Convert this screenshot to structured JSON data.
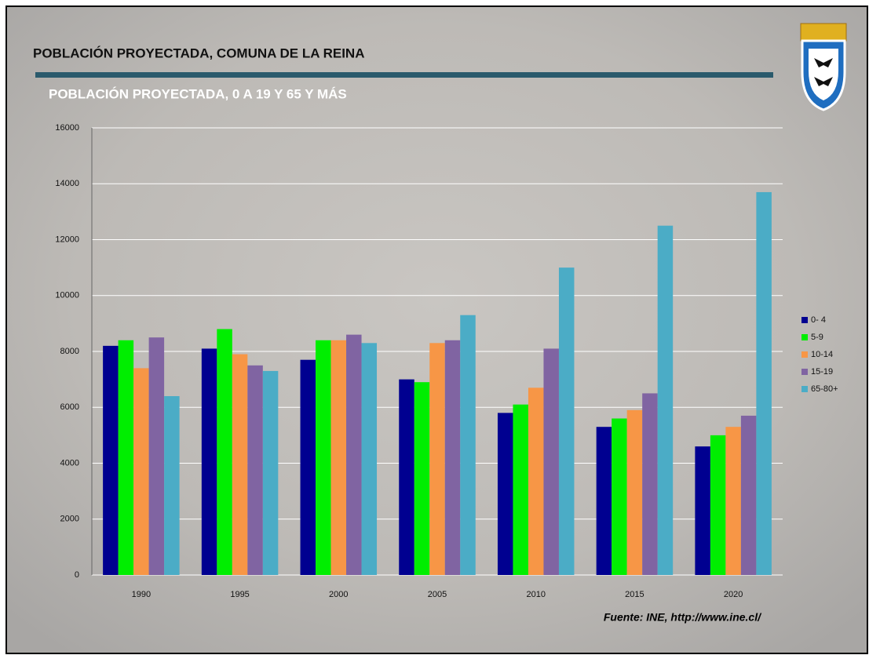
{
  "chart_data": {
    "type": "bar",
    "title": "POBLACIÓN PROYECTADA, COMUNA DE LA REINA",
    "subtitle": "POBLACIÓN PROYECTADA, 0 A 19 Y 65 Y MÁS",
    "source": "Fuente: INE, http://www.ine.cl/",
    "categories": [
      "1990",
      "1995",
      "2000",
      "2005",
      "2010",
      "2015",
      "2020"
    ],
    "series": [
      {
        "name": "0- 4",
        "color": "#000090",
        "values": [
          8200,
          8100,
          7700,
          7000,
          5800,
          5300,
          4600
        ]
      },
      {
        "name": "5-9",
        "color": "#00ee00",
        "values": [
          8400,
          8800,
          8400,
          6900,
          6100,
          5600,
          5000
        ]
      },
      {
        "name": "10-14",
        "color": "#f79646",
        "values": [
          7400,
          7900,
          8400,
          8300,
          6700,
          5900,
          5300
        ]
      },
      {
        "name": "15-19",
        "color": "#8064a2",
        "values": [
          8500,
          7500,
          8600,
          8400,
          8100,
          6500,
          5700
        ]
      },
      {
        "name": "65-80+",
        "color": "#4bacc6",
        "values": [
          6400,
          7300,
          8300,
          9300,
          11000,
          12500,
          13700
        ]
      }
    ],
    "ylim": [
      0,
      16000
    ],
    "yticks": [
      0,
      2000,
      4000,
      6000,
      8000,
      10000,
      12000,
      14000,
      16000
    ],
    "grid": true,
    "legend": "right"
  }
}
